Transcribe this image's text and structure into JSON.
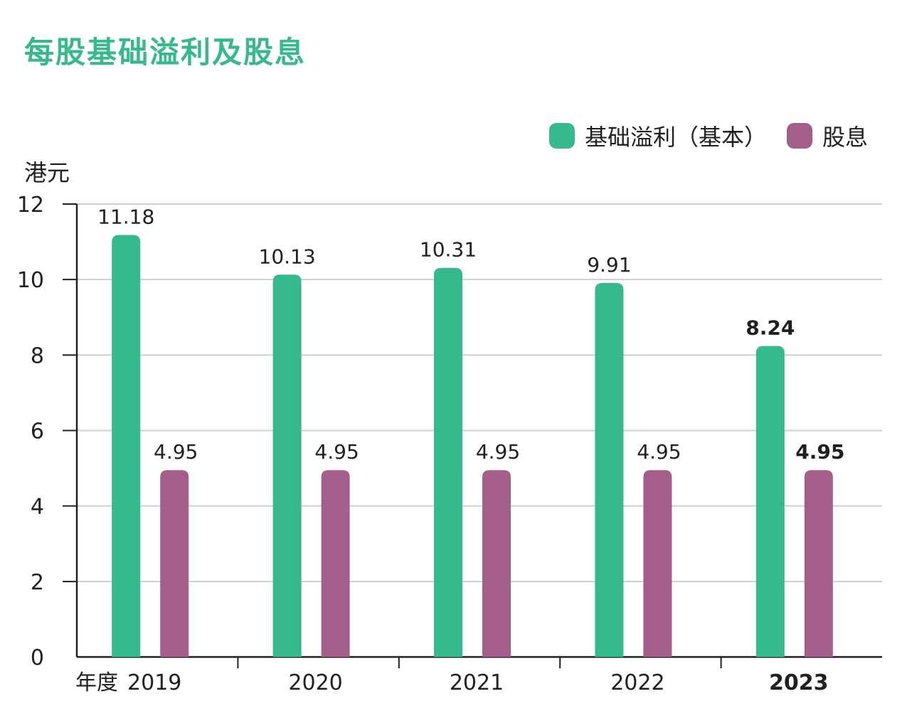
{
  "chart_data": {
    "type": "bar",
    "title": "每股基础溢利及股息",
    "ylabel": "港元",
    "xlabel": "年度",
    "ylim": [
      0,
      12
    ],
    "yticks": [
      "0",
      "2",
      "4",
      "6",
      "8",
      "10",
      "12"
    ],
    "grid": true,
    "legend_position": "top-right",
    "categories": [
      "2019",
      "2020",
      "2021",
      "2022",
      "2023"
    ],
    "highlight_category": "2023",
    "series": [
      {
        "name": "基础溢利（基本）",
        "color": "#36b98b",
        "values": [
          11.18,
          10.13,
          10.31,
          9.91,
          8.24
        ],
        "labels": [
          "11.18",
          "10.13",
          "10.31",
          "9.91",
          "8.24"
        ]
      },
      {
        "name": "股息",
        "color": "#a35f8a",
        "values": [
          4.95,
          4.95,
          4.95,
          4.95,
          4.95
        ],
        "labels": [
          "4.95",
          "4.95",
          "4.95",
          "4.95",
          "4.95"
        ]
      }
    ]
  }
}
